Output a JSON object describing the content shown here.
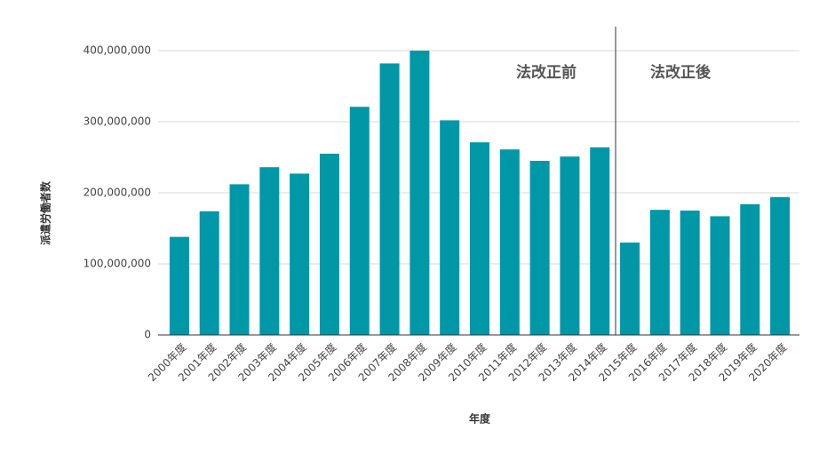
{
  "chart_data": {
    "type": "bar",
    "x_label": "年度",
    "y_label": "派遣労働者数",
    "annotations": [
      "法改正前",
      "法改正後"
    ],
    "categories": [
      "2000年度",
      "2001年度",
      "2002年度",
      "2003年度",
      "2004年度",
      "2005年度",
      "2006年度",
      "2007年度",
      "2008年度",
      "2009年度",
      "2010年度",
      "2011年度",
      "2012年度",
      "2013年度",
      "2014年度",
      "2015年度",
      "2016年度",
      "2017年度",
      "2018年度",
      "2019年度",
      "2020年度"
    ],
    "values": [
      138000000,
      174000000,
      212000000,
      236000000,
      227000000,
      255000000,
      321000000,
      382000000,
      400000000,
      302000000,
      271000000,
      261000000,
      245000000,
      251000000,
      264000000,
      130000000,
      176000000,
      175000000,
      167000000,
      184000000,
      194000000
    ],
    "color": "#0097a7",
    "ylim": [
      0,
      400000000
    ],
    "yticks": [
      0,
      {
        "value": 100000000,
        "label": "100,000,000"
      },
      {
        "value": 200000000,
        "label": "200,000,000"
      },
      {
        "value": 300000000,
        "label": "300,000,000"
      },
      {
        "value": 400000000,
        "label": "400,000,000"
      }
    ],
    "grid": true
  }
}
